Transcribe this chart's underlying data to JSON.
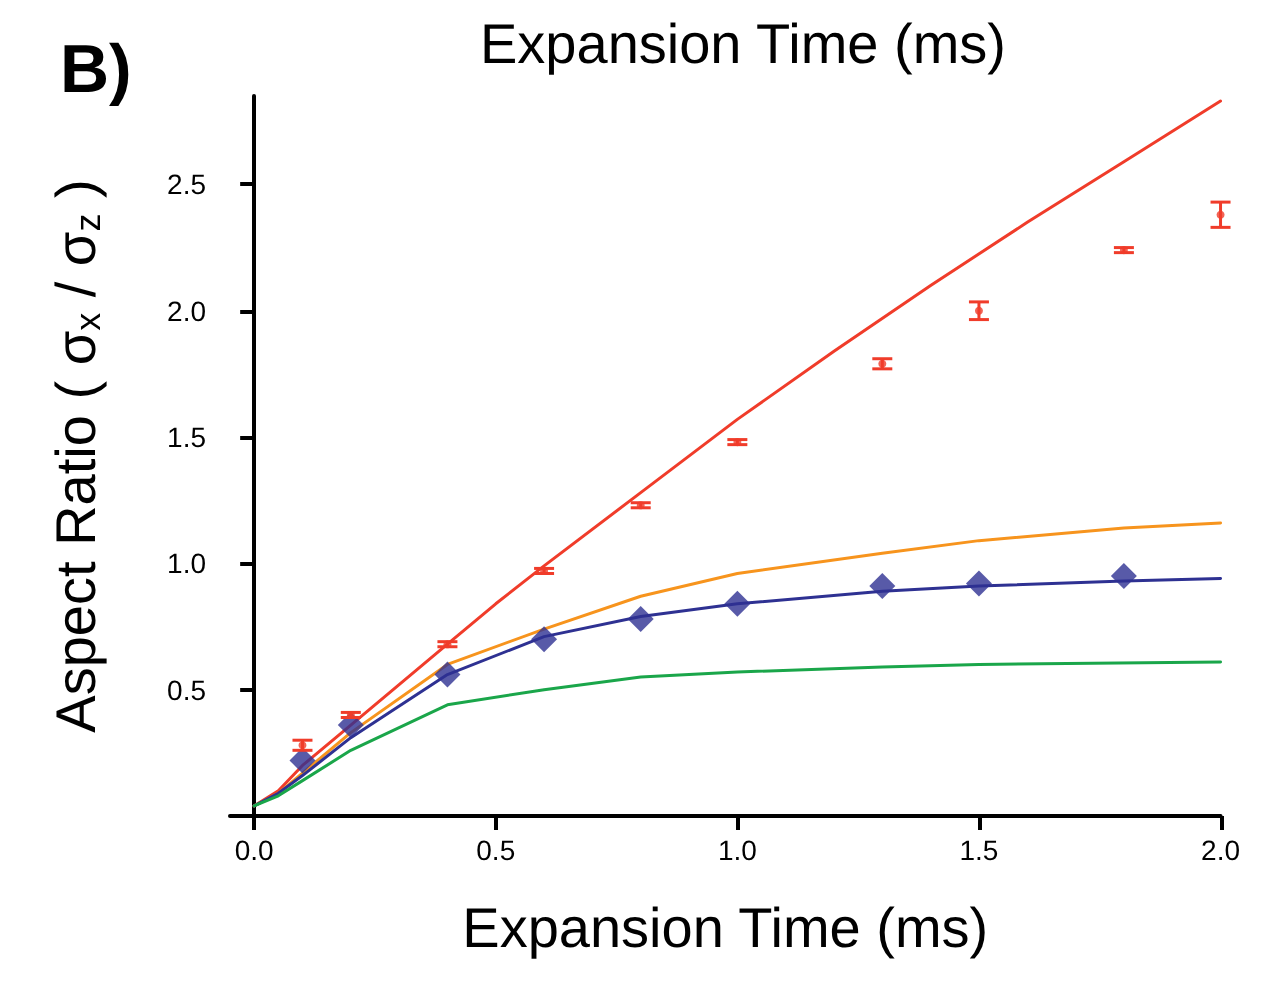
{
  "chart_data": {
    "type": "scatter",
    "xlabel": "Expansion Time (ms)",
    "ylabel": "Aspect Ratio ( σ$_{x}$ / σ$_{z}$ )",
    "annotations": [
      "B)",
      "Expansion Time (ms)"
    ],
    "xlim": [
      -0.05,
      2.0
    ],
    "xticks": [
      {
        "value": 0,
        "label": "0.0"
      },
      0.5,
      {
        "value": 1,
        "label": "1.0"
      },
      1.5,
      {
        "value": 2,
        "label": "2.0"
      }
    ],
    "ylim": [
      0,
      2.85
    ],
    "yticks": [
      0.5,
      {
        "value": 1,
        "label": "1.0"
      },
      1.5,
      {
        "value": 2,
        "label": "2.0"
      },
      2.5
    ],
    "grid": false,
    "series": [
      {
        "type": "line",
        "color": "#f03c2a",
        "marker": "none",
        "x": [
          0,
          0.05,
          0.1,
          0.2,
          0.3,
          0.4,
          0.5,
          0.6,
          0.8,
          1.0,
          1.2,
          1.4,
          1.6,
          1.8,
          2.0
        ],
        "values": [
          0.04,
          0.1,
          0.2,
          0.36,
          0.52,
          0.68,
          0.84,
          0.99,
          1.28,
          1.57,
          1.84,
          2.1,
          2.35,
          2.59,
          2.83
        ]
      },
      {
        "type": "line",
        "color": "#f7941d",
        "marker": "none",
        "x": [
          0,
          0.05,
          0.1,
          0.2,
          0.4,
          0.6,
          0.8,
          1.0,
          1.3,
          1.5,
          1.8,
          2.0
        ],
        "values": [
          0.04,
          0.09,
          0.17,
          0.33,
          0.6,
          0.74,
          0.87,
          0.96,
          1.04,
          1.09,
          1.14,
          1.16
        ]
      },
      {
        "type": "line",
        "color": "#2e3192",
        "marker": "none",
        "x": [
          0,
          0.05,
          0.1,
          0.2,
          0.4,
          0.6,
          0.8,
          1.0,
          1.3,
          1.5,
          1.8,
          2.0
        ],
        "values": [
          0.04,
          0.09,
          0.16,
          0.31,
          0.56,
          0.71,
          0.79,
          0.84,
          0.89,
          0.91,
          0.93,
          0.94
        ]
      },
      {
        "type": "line",
        "color": "#1aa64a",
        "marker": "none",
        "x": [
          0,
          0.05,
          0.1,
          0.2,
          0.4,
          0.6,
          0.8,
          1.0,
          1.3,
          1.5,
          2.0
        ],
        "values": [
          0.04,
          0.08,
          0.14,
          0.26,
          0.44,
          0.5,
          0.55,
          0.57,
          0.59,
          0.6,
          0.61
        ]
      },
      {
        "type": "scatter",
        "color": "#f03c2a",
        "marker": "circle",
        "x": [
          0.1,
          0.2,
          0.4,
          0.6,
          0.8,
          1.0,
          1.3,
          1.5,
          1.8,
          2.0
        ],
        "values": [
          0.28,
          0.4,
          0.68,
          0.97,
          1.23,
          1.48,
          1.79,
          2.0,
          2.24,
          2.38
        ],
        "errors": [
          0.02,
          0.01,
          0.01,
          0.01,
          0.01,
          0.01,
          0.02,
          0.035,
          0.01,
          0.05
        ]
      },
      {
        "color": "#2e3192",
        "marker": "diamond",
        "x": [
          0.1,
          0.2,
          0.4,
          0.6,
          0.8,
          1.0,
          1.3,
          1.5,
          1.8
        ],
        "values": [
          0.22,
          0.36,
          0.56,
          0.7,
          0.78,
          0.84,
          0.91,
          0.92,
          0.95
        ]
      }
    ]
  }
}
